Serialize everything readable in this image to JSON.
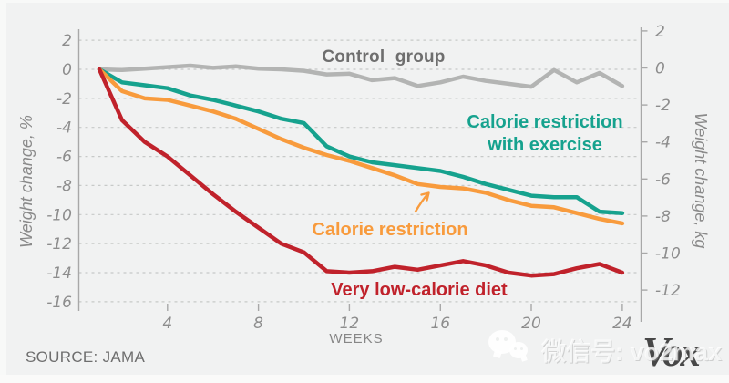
{
  "chart_data": {
    "type": "line",
    "x_label": "WEEKS",
    "x_ticks": [
      4,
      8,
      12,
      16,
      20,
      24
    ],
    "x_range": [
      1,
      24
    ],
    "grid": true,
    "left_axis": {
      "label": "Weight change, %",
      "ticks": [
        2,
        0,
        -2,
        -4,
        -6,
        -8,
        -10,
        -12,
        -14,
        -16
      ],
      "range": [
        2,
        -16
      ]
    },
    "right_axis": {
      "label": "Weight change, kg",
      "ticks": [
        2,
        0,
        -2,
        -4,
        -6,
        -8,
        -10,
        -12
      ],
      "range": [
        2,
        -12
      ]
    },
    "weeks": [
      1,
      2,
      3,
      4,
      5,
      6,
      7,
      8,
      9,
      10,
      11,
      12,
      13,
      14,
      15,
      16,
      17,
      18,
      19,
      20,
      21,
      22,
      23,
      24
    ],
    "series": [
      {
        "id": "control",
        "name": "Control group",
        "color": "#b3b4b3",
        "values": [
          0,
          -0.05,
          0.05,
          0.15,
          0.25,
          0.1,
          0.2,
          0.05,
          0,
          -0.1,
          -0.35,
          -0.3,
          -0.75,
          -0.6,
          -1.15,
          -0.9,
          -0.5,
          -0.8,
          -1.0,
          -1.2,
          -0.05,
          -0.9,
          -0.25,
          -1.15
        ]
      },
      {
        "id": "cr_exercise",
        "name": "Calorie restriction with exercise",
        "color": "#16a28e",
        "values": [
          0,
          -0.9,
          -1.1,
          -1.3,
          -1.8,
          -2.1,
          -2.5,
          -2.9,
          -3.4,
          -3.7,
          -5.3,
          -6.0,
          -6.4,
          -6.6,
          -6.8,
          -7.0,
          -7.4,
          -7.9,
          -8.3,
          -8.7,
          -8.8,
          -8.8,
          -9.8,
          -9.9
        ]
      },
      {
        "id": "cr",
        "name": "Calorie restriction",
        "color": "#f89b3d",
        "values": [
          0,
          -1.5,
          -2.0,
          -2.1,
          -2.5,
          -2.9,
          -3.4,
          -4.1,
          -4.8,
          -5.4,
          -5.9,
          -6.3,
          -6.8,
          -7.3,
          -7.9,
          -8.1,
          -8.2,
          -8.5,
          -9.0,
          -9.4,
          -9.5,
          -9.9,
          -10.3,
          -10.6
        ]
      },
      {
        "id": "vlcd",
        "name": "Very low-calorie diet",
        "color": "#c0222b",
        "values": [
          0,
          -3.5,
          -5.0,
          -6.0,
          -7.3,
          -8.6,
          -9.8,
          -10.9,
          -12.0,
          -12.6,
          -13.9,
          -14.0,
          -13.9,
          -13.6,
          -13.8,
          -13.5,
          -13.2,
          -13.5,
          -14.0,
          -14.2,
          -14.1,
          -13.7,
          -13.4,
          -14.0
        ]
      }
    ],
    "source": "SOURCE: JAMA"
  },
  "annotations": {
    "control": "Control group",
    "cr_ex_line1": "Calorie restriction",
    "cr_ex_line2": "with exercise",
    "cr": "Calorie restriction",
    "vlcd": "Very low-calorie diet"
  },
  "watermark": {
    "wechat_text": "微信号: vo2max",
    "logo_text": "Vox"
  },
  "colors": {
    "background": "#f1f2f2",
    "teal": "#16a28e",
    "orange": "#f89b3d",
    "red": "#c0222b",
    "line_gray": "#b3b4b3",
    "label_gray": "#6e6e6e",
    "gridline": "#c7c9c8"
  }
}
